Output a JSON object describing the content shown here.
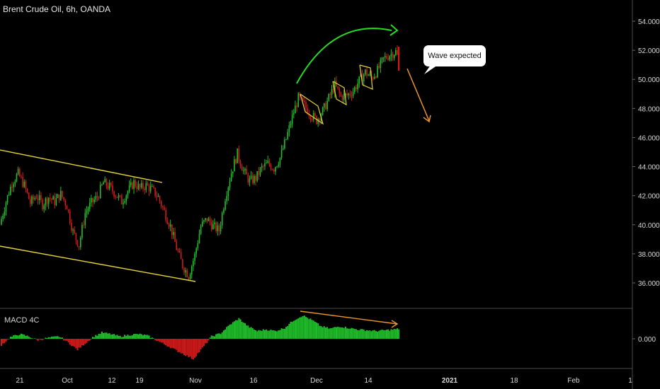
{
  "header": {
    "title": "Brent Crude Oil, 6h, OANDA"
  },
  "macd": {
    "label": "MACD 4C",
    "zero_label": "0.000"
  },
  "annotation": {
    "callout": "Wave expected"
  },
  "colors": {
    "background": "#000000",
    "up_candle": "#1fbf2a",
    "down_candle": "#d11a1a",
    "channel_lines": "#e5d43a",
    "forecast_arc": "#22dd22",
    "forecast_arrow": "#e8952a",
    "divergence_line": "#e8952a",
    "axis_text": "#d9d9d9",
    "grid_border": "#4a4a4a"
  },
  "chart_data": {
    "type": "candlestick",
    "instrument": "Brent Crude Oil",
    "timeframe": "6h",
    "source": "OANDA",
    "ylim": [
      34.0,
      55.0
    ],
    "y_ticks": [
      "54.000",
      "52.000",
      "50.000",
      "48.000",
      "46.000",
      "44.000",
      "42.000",
      "40.000",
      "38.000",
      "36.000"
    ],
    "x_ticks": [
      "21",
      "Oct",
      "12",
      "19",
      "Nov",
      "16",
      "Dec",
      "14",
      "2021",
      "18",
      "Feb",
      "1"
    ],
    "x_tick_bold": [
      "2021"
    ],
    "price_path": [
      [
        0,
        40.0
      ],
      [
        4,
        41.6
      ],
      [
        8,
        42.9
      ],
      [
        12,
        43.5
      ],
      [
        16,
        42.7
      ],
      [
        20,
        41.5
      ],
      [
        24,
        42.0
      ],
      [
        28,
        41.4
      ],
      [
        32,
        41.9
      ],
      [
        36,
        41.6
      ],
      [
        40,
        42.1
      ],
      [
        44,
        41.3
      ],
      [
        48,
        39.5
      ],
      [
        52,
        38.6
      ],
      [
        56,
        40.8
      ],
      [
        60,
        41.5
      ],
      [
        64,
        41.9
      ],
      [
        68,
        42.9
      ],
      [
        72,
        42.6
      ],
      [
        76,
        42.1
      ],
      [
        80,
        41.6
      ],
      [
        84,
        42.3
      ],
      [
        88,
        42.9
      ],
      [
        92,
        42.5
      ],
      [
        96,
        42.7
      ],
      [
        100,
        42.4
      ],
      [
        104,
        41.9
      ],
      [
        108,
        40.9
      ],
      [
        112,
        39.9
      ],
      [
        116,
        38.4
      ],
      [
        120,
        37.2
      ],
      [
        124,
        36.5
      ],
      [
        128,
        37.9
      ],
      [
        132,
        39.9
      ],
      [
        136,
        40.4
      ],
      [
        140,
        39.9
      ],
      [
        144,
        39.6
      ],
      [
        148,
        41.9
      ],
      [
        152,
        43.6
      ],
      [
        156,
        44.9
      ],
      [
        160,
        43.7
      ],
      [
        164,
        43.0
      ],
      [
        168,
        43.2
      ],
      [
        172,
        43.9
      ],
      [
        176,
        44.2
      ],
      [
        180,
        43.9
      ],
      [
        184,
        44.6
      ],
      [
        188,
        45.9
      ],
      [
        192,
        47.4
      ],
      [
        196,
        48.7
      ],
      [
        200,
        48.2
      ],
      [
        204,
        47.6
      ],
      [
        208,
        47.2
      ],
      [
        212,
        47.8
      ],
      [
        216,
        48.7
      ],
      [
        220,
        49.6
      ],
      [
        224,
        48.8
      ],
      [
        228,
        48.9
      ],
      [
        232,
        49.2
      ],
      [
        236,
        49.9
      ],
      [
        240,
        50.5
      ],
      [
        244,
        50.1
      ],
      [
        248,
        50.6
      ],
      [
        252,
        51.4
      ],
      [
        256,
        51.7
      ],
      [
        260,
        51.9
      ],
      [
        262,
        51.3
      ]
    ],
    "candle_count": 262,
    "annotations": [
      "upper channel line",
      "lower channel line",
      "green curved arrow",
      "orange down arrow",
      "callout: Wave expected",
      "yellow flag patterns",
      "orange divergence line on MACD"
    ],
    "macd_4c": {
      "type": "histogram",
      "zero_label": "0.000",
      "path": [
        [
          0,
          -0.8
        ],
        [
          6,
          0.2
        ],
        [
          12,
          0.6
        ],
        [
          18,
          0.3
        ],
        [
          24,
          -0.2
        ],
        [
          30,
          0.1
        ],
        [
          38,
          0.3
        ],
        [
          44,
          -0.5
        ],
        [
          50,
          -1.4
        ],
        [
          55,
          -0.6
        ],
        [
          60,
          0.2
        ],
        [
          66,
          0.8
        ],
        [
          72,
          0.6
        ],
        [
          78,
          0.3
        ],
        [
          84,
          0.5
        ],
        [
          90,
          0.6
        ],
        [
          96,
          0.4
        ],
        [
          102,
          -0.2
        ],
        [
          108,
          -0.8
        ],
        [
          114,
          -1.4
        ],
        [
          120,
          -2.0
        ],
        [
          126,
          -2.6
        ],
        [
          132,
          -1.2
        ],
        [
          138,
          0.3
        ],
        [
          144,
          0.7
        ],
        [
          150,
          1.8
        ],
        [
          156,
          2.6
        ],
        [
          162,
          1.6
        ],
        [
          168,
          1.0
        ],
        [
          174,
          1.2
        ],
        [
          180,
          1.0
        ],
        [
          186,
          1.4
        ],
        [
          192,
          2.4
        ],
        [
          198,
          3.0
        ],
        [
          204,
          2.4
        ],
        [
          210,
          1.6
        ],
        [
          216,
          1.3
        ],
        [
          222,
          1.6
        ],
        [
          228,
          1.4
        ],
        [
          234,
          1.2
        ],
        [
          240,
          1.1
        ],
        [
          246,
          1.0
        ],
        [
          252,
          1.1
        ],
        [
          258,
          1.2
        ],
        [
          262,
          1.3
        ]
      ]
    }
  }
}
